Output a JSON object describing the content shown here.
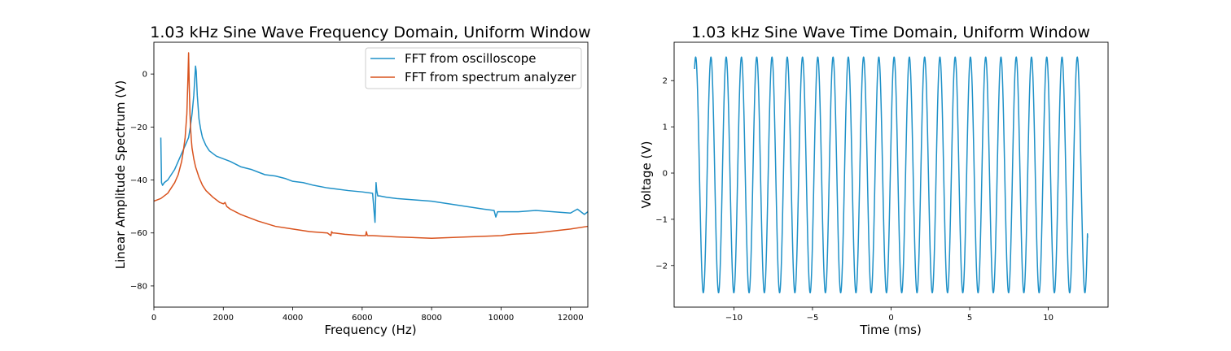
{
  "chart_data": [
    {
      "type": "line",
      "title": "1.03 kHz Sine Wave Frequency Domain, Uniform Window",
      "xlabel": "Frequency (Hz)",
      "ylabel": "Linear Amplitude Spectrum (V)",
      "xlim": [
        0,
        12500
      ],
      "ylim": [
        -88,
        12
      ],
      "xticks": [
        0,
        2000,
        4000,
        6000,
        8000,
        10000,
        12000
      ],
      "xtick_labels": [
        "0",
        "2000",
        "4000",
        "6000",
        "8000",
        "10000",
        "12000"
      ],
      "yticks": [
        0,
        -20,
        -40,
        -60,
        -80
      ],
      "ytick_labels": [
        "0",
        "−20",
        "−40",
        "−60",
        "−80"
      ],
      "grid": false,
      "legend_position": "top-right",
      "series": [
        {
          "name": "FFT from oscilloscope",
          "color": "#1f91c8",
          "x": [
            200,
            220,
            250,
            300,
            400,
            500,
            600,
            700,
            800,
            900,
            1000,
            1050,
            1100,
            1150,
            1200,
            1220,
            1250,
            1300,
            1350,
            1400,
            1500,
            1600,
            1800,
            2000,
            2200,
            2500,
            2800,
            3000,
            3200,
            3500,
            3800,
            4000,
            4300,
            4600,
            5000,
            5300,
            5600,
            6000,
            6300,
            6370,
            6400,
            6420,
            6450,
            6500,
            6700,
            7000,
            7500,
            8000,
            8500,
            9000,
            9500,
            9800,
            9850,
            9900,
            10000,
            10500,
            11000,
            11500,
            12000,
            12200,
            12400,
            12500
          ],
          "y": [
            -24,
            -41,
            -42,
            -41,
            -40,
            -38,
            -36,
            -33,
            -30,
            -27,
            -24,
            -20,
            -15,
            -8,
            3,
            1,
            -8,
            -17,
            -21,
            -24,
            -27,
            -29,
            -31,
            -32,
            -33,
            -35,
            -36,
            -37,
            -38,
            -38.5,
            -39.5,
            -40.5,
            -41,
            -42,
            -43,
            -43.5,
            -44,
            -44.5,
            -45,
            -56,
            -41,
            -44,
            -46,
            -46,
            -46.5,
            -47,
            -47.5,
            -48,
            -49,
            -50,
            -51,
            -51.5,
            -54,
            -52,
            -52,
            -52,
            -51.5,
            -52,
            -52.5,
            -51,
            -53,
            -52
          ]
        },
        {
          "name": "FFT from spectrum analyzer",
          "color": "#d9531e",
          "x": [
            0,
            100,
            200,
            300,
            400,
            500,
            600,
            700,
            800,
            850,
            900,
            950,
            980,
            1000,
            1020,
            1040,
            1060,
            1080,
            1100,
            1150,
            1200,
            1300,
            1400,
            1500,
            1700,
            1900,
            2000,
            2050,
            2100,
            2200,
            2500,
            3000,
            3500,
            4000,
            4500,
            5000,
            5100,
            5120,
            5150,
            5200,
            5500,
            6000,
            6100,
            6120,
            6150,
            6300,
            7000,
            8000,
            9000,
            10000,
            10300,
            11000,
            12000,
            12500
          ],
          "y": [
            -48,
            -47.5,
            -47,
            -46,
            -45,
            -43,
            -41,
            -38,
            -33,
            -29,
            -24,
            -15,
            -2,
            8,
            -5,
            -15,
            -21,
            -25,
            -28,
            -32,
            -35,
            -39,
            -42,
            -44,
            -46.5,
            -48.5,
            -49,
            -48.5,
            -50,
            -51,
            -53,
            -55.5,
            -57.5,
            -58.5,
            -59.5,
            -60,
            -61,
            -59.5,
            -60,
            -60,
            -60.5,
            -61,
            -61,
            -59.5,
            -61,
            -61,
            -61.5,
            -62,
            -61.5,
            -61,
            -60.5,
            -60,
            -58.5,
            -57.5
          ]
        }
      ]
    },
    {
      "type": "line",
      "title": "1.03 kHz Sine Wave Time Domain, Uniform Window",
      "xlabel": "Time (ms)",
      "ylabel": "Voltage (V)",
      "xlim": [
        -13.8,
        13.8
      ],
      "ylim": [
        -2.9,
        2.83
      ],
      "xticks": [
        -10,
        -5,
        0,
        5,
        10
      ],
      "xtick_labels": [
        "−10",
        "−5",
        "0",
        "5",
        "10"
      ],
      "yticks": [
        2,
        1,
        0,
        -1,
        -2
      ],
      "ytick_labels": [
        "2",
        "1",
        "0",
        "−1",
        "−2"
      ],
      "grid": false,
      "series": [
        {
          "color": "#1f91c8",
          "signal": "sine",
          "frequency_khz": 1.03,
          "amplitude_v": 2.55,
          "offset_v": -0.04,
          "t_start_ms": -12.5,
          "t_end_ms": 12.5,
          "v_start": 2.25,
          "v_end": -1.4
        }
      ]
    }
  ]
}
